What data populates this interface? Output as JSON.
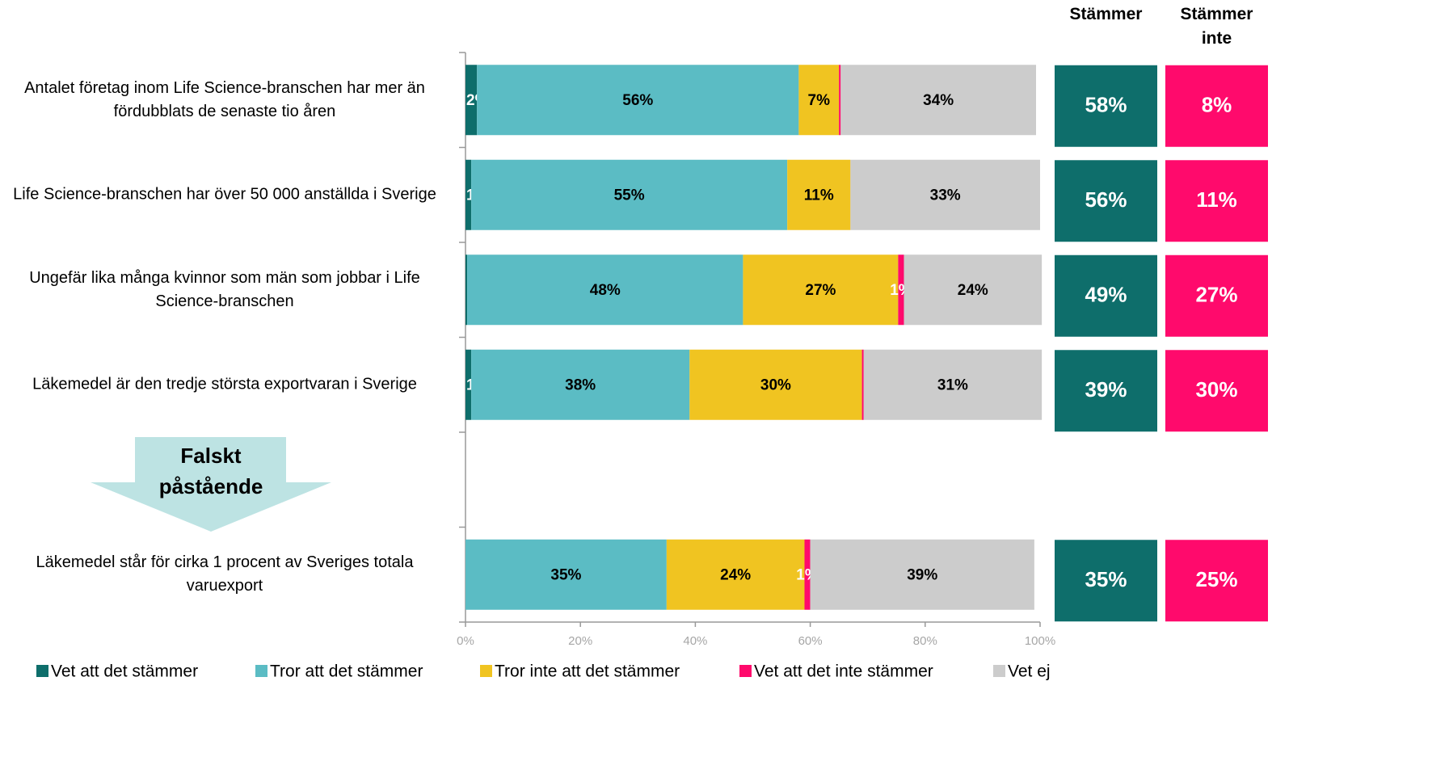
{
  "chart_data": {
    "type": "stacked-bar-horizontal",
    "categories": [
      "Antalet företag inom Life Science-branschen har mer än fördubblats de senaste tio åren",
      "Life Science-branschen har över 50 000 anställda i Sverige",
      "Ungefär lika många kvinnor som män som jobbar i Life Science-branschen",
      "Läkemedel är den tredje största exportvaran i Sverige",
      null,
      "Läkemedel står för cirka 1 procent av Sveriges totala varuexport"
    ],
    "series": [
      {
        "name": "Vet att det stämmer",
        "color": "#0e6e6b",
        "values": [
          2,
          1,
          0.3,
          1,
          null,
          0
        ],
        "value_labels": [
          "2%",
          "1%",
          null,
          "1%",
          null,
          null
        ]
      },
      {
        "name": "Tror att det stämmer",
        "color": "#5bbcc4",
        "values": [
          56,
          55,
          48,
          38,
          null,
          35
        ],
        "value_labels": [
          "56%",
          "55%",
          "48%",
          "38%",
          null,
          "35%"
        ]
      },
      {
        "name": "Tror inte att det stämmer",
        "color": "#f0c421",
        "values": [
          7,
          11,
          27,
          30,
          null,
          24
        ],
        "value_labels": [
          "7%",
          "11%",
          "27%",
          "30%",
          null,
          "24%"
        ]
      },
      {
        "name": "Vet att det inte stämmer",
        "color": "#ff0a6c",
        "values": [
          0.3,
          0,
          1,
          0.3,
          null,
          1
        ],
        "value_labels": [
          null,
          null,
          "1%",
          null,
          null,
          "1%"
        ]
      },
      {
        "name": "Vet ej",
        "color": "#cccccc",
        "values": [
          34,
          33,
          24,
          31,
          null,
          39
        ],
        "value_labels": [
          "34%",
          "33%",
          "24%",
          "31%",
          null,
          "39%"
        ]
      }
    ],
    "xlim": [
      0,
      100
    ],
    "xticks": [
      {
        "value": 0,
        "label": "0%"
      },
      {
        "value": 20,
        "label": "20%"
      },
      {
        "value": 40,
        "label": "40%"
      },
      {
        "value": 60,
        "label": "60%"
      },
      {
        "value": 80,
        "label": "80%"
      },
      {
        "value": 100,
        "label": "100%"
      }
    ],
    "legend": "bottom",
    "summary": [
      {
        "name": "Stämmer",
        "color": "#0e6e6b",
        "values": [
          58,
          56,
          49,
          39,
          null,
          35
        ],
        "value_labels": [
          "58%",
          "56%",
          "49%",
          "39%",
          null,
          "35%"
        ]
      },
      {
        "name": "Stämmer inte",
        "color": "#ff0a6c",
        "values": [
          8,
          11,
          27,
          30,
          null,
          25
        ],
        "value_labels": [
          "8%",
          "11%",
          "27%",
          "30%",
          null,
          "25%"
        ]
      }
    ],
    "annotation": "Falskt påstående"
  }
}
